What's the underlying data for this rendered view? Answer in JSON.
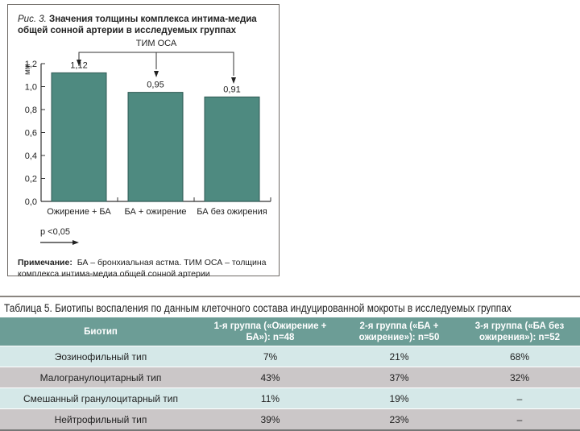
{
  "figure": {
    "caption_prefix": "Рис. 3.",
    "caption": "Значения толщины комплекса интима-медиа общей сонной артерии в исследуемых группах",
    "bracket_label": "ТИМ ОСА",
    "p_value": "p <0,05",
    "note_label": "Примечание:",
    "note_text": "БА – бронхиальная астма. ТИМ ОСА – толщина комплекса интима-медиа общей сонной артерии"
  },
  "chart_data": {
    "type": "bar",
    "title": "Значения толщины комплекса интима-медиа общей сонной артерии в исследуемых группах",
    "categories": [
      "Ожирение + БА",
      "БА + ожирение",
      "БА без ожирения"
    ],
    "values": [
      1.12,
      0.95,
      0.91
    ],
    "value_labels": [
      "1,12",
      "0,95",
      "0,91"
    ],
    "ylabel": "мм",
    "ylim": [
      0,
      1.2
    ],
    "yticks": [
      "0,0",
      "0,2",
      "0,4",
      "0,6",
      "0,8",
      "1,0",
      "1,2"
    ],
    "bar_color": "#4e8a80"
  },
  "table": {
    "title": "Таблица 5. Биотипы воспаления по данным клеточного состава индуцированной мокроты в исследуемых группах",
    "headers": [
      "Биотип",
      "1-я группа («Ожирение + БА»): n=48",
      "2-я группа («БА + ожирение»): n=50",
      "3-я группа («БА без ожирения»): n=52"
    ],
    "rows": [
      [
        "Эозинофильный тип",
        "7%",
        "21%",
        "68%"
      ],
      [
        "Малогранулоцитарный тип",
        "43%",
        "37%",
        "32%"
      ],
      [
        "Смешанный гранулоцитарный тип",
        "11%",
        "19%",
        "–"
      ],
      [
        "Нейтрофильный тип",
        "39%",
        "23%",
        "–"
      ]
    ]
  }
}
